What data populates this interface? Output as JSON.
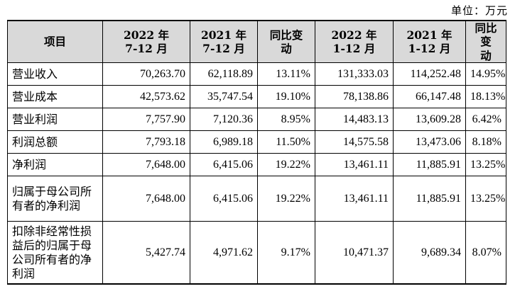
{
  "unit_label": "单位：万元",
  "headers": [
    [
      "项目"
    ],
    [
      "2022 年",
      "7-12 月"
    ],
    [
      "2021 年",
      "7-12 月"
    ],
    [
      "同比变",
      "动"
    ],
    [
      "2022 年",
      "1-12 月"
    ],
    [
      "2021 年",
      "1-12 月"
    ],
    [
      "同比变",
      "动"
    ]
  ],
  "rows": [
    {
      "label": "营业收入",
      "values": [
        "70,263.70",
        "62,118.89",
        "13.11%",
        "131,333.03",
        "114,252.48",
        "14.95%"
      ]
    },
    {
      "label": "营业成本",
      "values": [
        "42,573.62",
        "35,747.54",
        "19.10%",
        "78,138.86",
        "66,147.48",
        "18.13%"
      ]
    },
    {
      "label": "营业利润",
      "values": [
        "7,757.90",
        "7,120.36",
        "8.95%",
        "14,483.13",
        "13,609.28",
        "6.42%"
      ]
    },
    {
      "label": "利润总额",
      "values": [
        "7,793.18",
        "6,989.18",
        "11.50%",
        "14,575.58",
        "13,473.06",
        "8.18%"
      ]
    },
    {
      "label": "净利润",
      "values": [
        "7,648.00",
        "6,415.06",
        "19.22%",
        "13,461.11",
        "11,885.91",
        "13.25%"
      ]
    },
    {
      "label": "归属于母公司所有者的净利润",
      "values": [
        "7,648.00",
        "6,415.06",
        "19.22%",
        "13,461.11",
        "11,885.91",
        "13.25%"
      ]
    },
    {
      "label": "扣除非经常性损益后的归属于母公司所有者的净利润",
      "values": [
        "5,427.74",
        "4,971.62",
        "9.17%",
        "10,471.37",
        "9,689.34",
        "8.07%"
      ]
    }
  ]
}
